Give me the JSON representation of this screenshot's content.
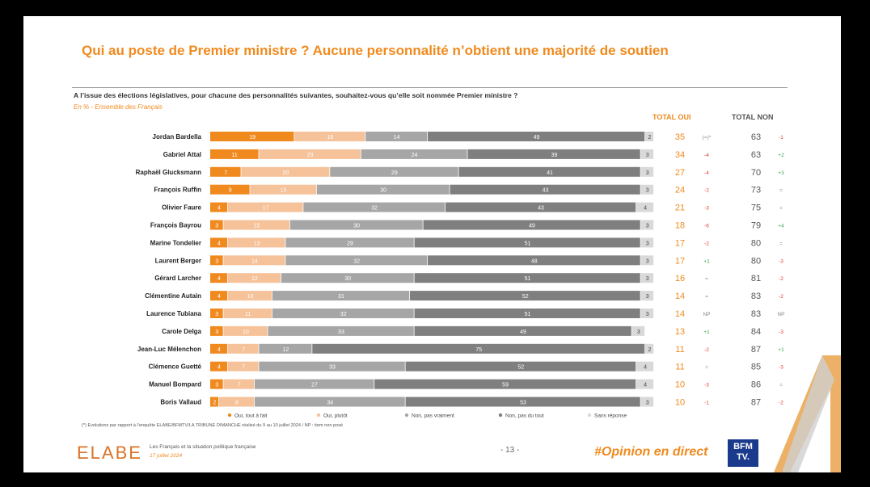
{
  "slide": {
    "title": "Qui au poste de Premier ministre ? Aucune personnalité n’obtient une majorité de soutien",
    "question": "A l’issue des élections législatives, pour chacune des personnalités suivantes, souhaitez-vous qu’elle soit nommée Premier ministre ?",
    "subtitle": "En % - Ensemble des Français",
    "total_oui_header": "TOTAL OUI",
    "total_non_header": "TOTAL NON",
    "footnote": "(*) Evolutions par rapport à l’enquête ELABE/BFMTV/LA TRIBUNE DIMANCHE réalisé du 9 au 10 juillet 2024   /   NP : item non posé",
    "logo": "ELABE",
    "source_line1": "Les Français et la situation politique française",
    "source_line2": "17 juillet 2024",
    "page_number": "- 13 -",
    "hashtag": "#Opinion en direct",
    "bfm_line1": "BFM",
    "bfm_line2": "TV."
  },
  "colors": {
    "oui_tout_a_fait": "#f08a1e",
    "oui_plutot": "#f5c29a",
    "non_pas_vraiment": "#a6a6a6",
    "non_pas_du_tout": "#7f7f7f",
    "sans_reponse": "#d9d9d9",
    "total_oui": "#f08a1e",
    "total_non": "#555555",
    "evo_negative": "#e03c31",
    "evo_positive": "#3aa655",
    "evo_neutral": "#888888"
  },
  "chart_data": {
    "type": "bar",
    "orientation": "horizontal",
    "stacked": true,
    "categories": [
      "Jordan Bardella",
      "Gabriel Attal",
      "Raphaël Glucksmann",
      "François Ruffin",
      "Olivier Faure",
      "François Bayrou",
      "Marine Tondelier",
      "Laurent Berger",
      "Gérard Larcher",
      "Clémentine Autain",
      "Laurence Tubiana",
      "Carole Delga",
      "Jean-Luc Mélenchon",
      "Clémence Guetté",
      "Manuel Bompard",
      "Boris Vallaud"
    ],
    "series": [
      {
        "name": "Oui, tout à fait",
        "color_key": "oui_tout_a_fait",
        "values": [
          19,
          11,
          7,
          9,
          4,
          3,
          4,
          3,
          4,
          4,
          3,
          3,
          4,
          4,
          3,
          2
        ]
      },
      {
        "name": "Oui, plutôt",
        "color_key": "oui_plutot",
        "values": [
          16,
          23,
          20,
          15,
          17,
          15,
          13,
          14,
          12,
          10,
          11,
          10,
          7,
          7,
          7,
          8
        ]
      },
      {
        "name": "Non, pas vraiment",
        "color_key": "non_pas_vraiment",
        "values": [
          14,
          24,
          29,
          30,
          32,
          30,
          29,
          32,
          30,
          31,
          32,
          33,
          12,
          33,
          27,
          34
        ]
      },
      {
        "name": "Non, pas du tout",
        "color_key": "non_pas_du_tout",
        "values": [
          49,
          39,
          41,
          43,
          43,
          49,
          51,
          48,
          51,
          52,
          51,
          49,
          75,
          52,
          59,
          53
        ]
      },
      {
        "name": "Sans réponse",
        "color_key": "sans_reponse",
        "values": [
          2,
          3,
          3,
          3,
          4,
          3,
          3,
          3,
          3,
          3,
          3,
          3,
          2,
          4,
          4,
          3
        ]
      }
    ],
    "total_oui": [
      35,
      34,
      27,
      24,
      21,
      18,
      17,
      17,
      16,
      14,
      14,
      13,
      11,
      11,
      10,
      10
    ],
    "evolution_oui": [
      "(=)*",
      "-4",
      "-4",
      "-2",
      "-3",
      "-6",
      "-2",
      "+1",
      "=",
      "=",
      "NP",
      "+1",
      "-2",
      "=",
      "-3",
      "-1"
    ],
    "total_non": [
      63,
      63,
      70,
      73,
      75,
      79,
      80,
      80,
      81,
      83,
      83,
      84,
      87,
      85,
      86,
      87
    ],
    "evolution_non": [
      "-1",
      "+2",
      "+3",
      "=",
      "=",
      "+4",
      "=",
      "-3",
      "-2",
      "-2",
      "NP",
      "-3",
      "+1",
      "-3",
      "=",
      "-2"
    ],
    "xlim": [
      0,
      100
    ],
    "xlabel": "",
    "ylabel": "",
    "legend_position": "bottom"
  }
}
